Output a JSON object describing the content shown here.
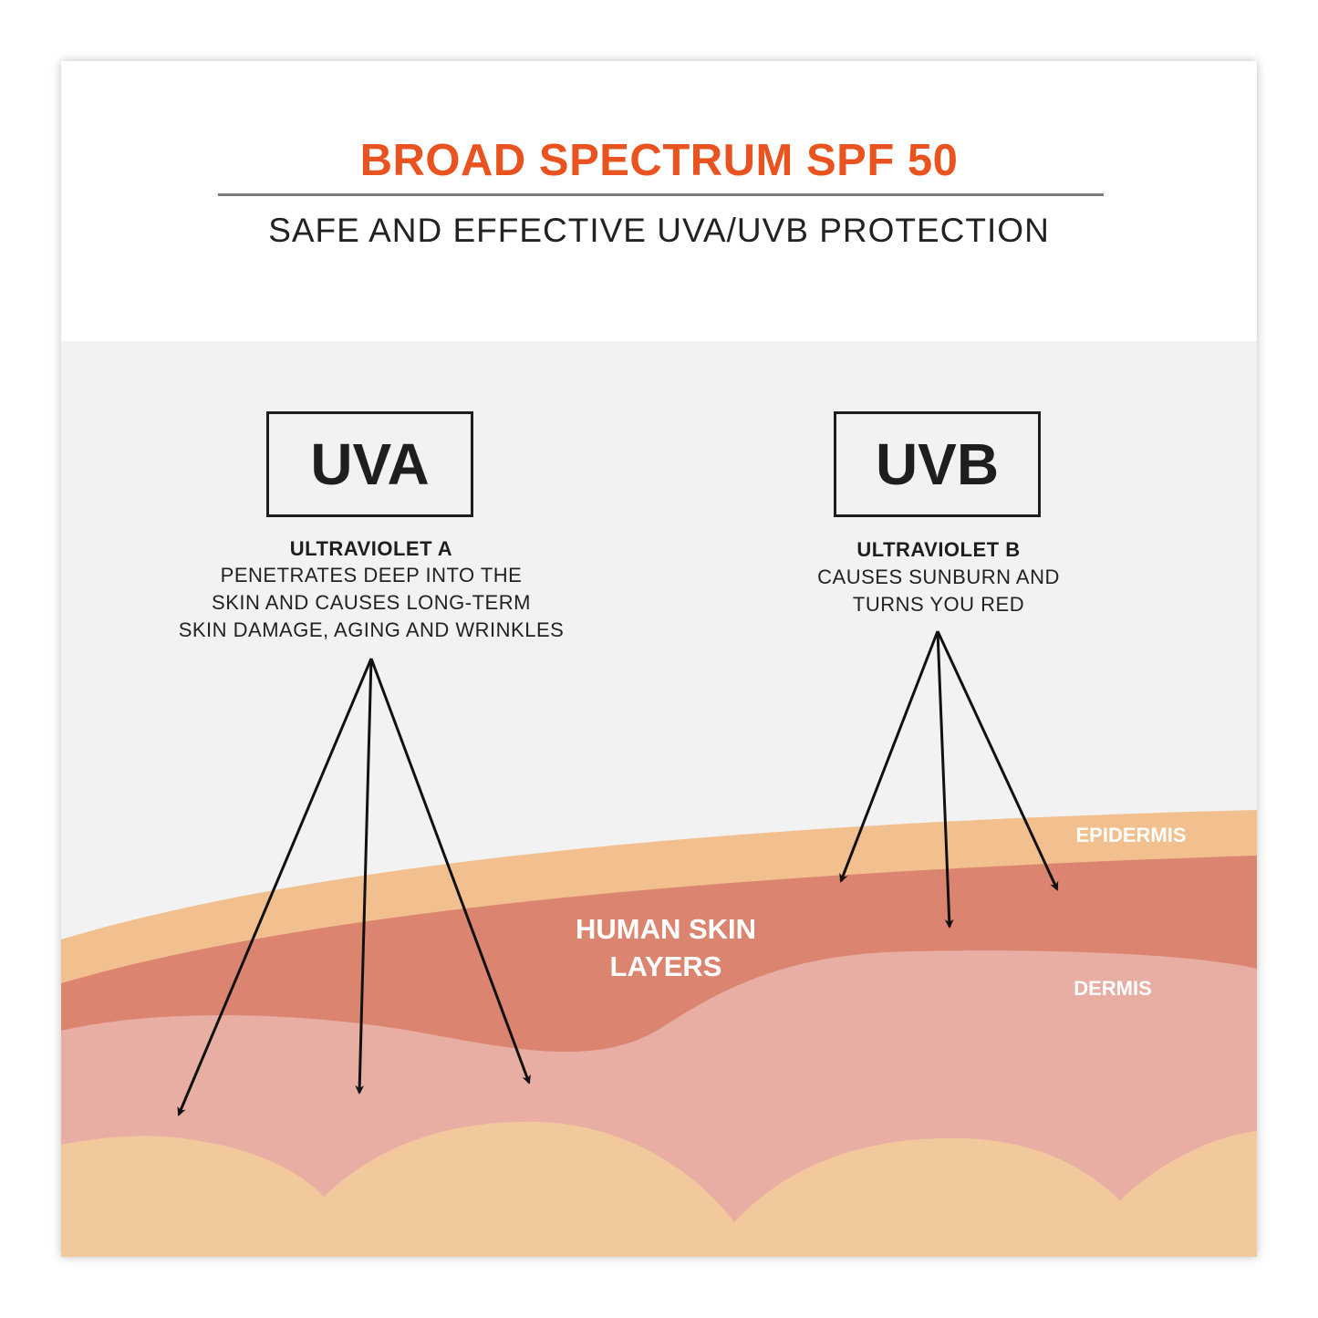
{
  "header": {
    "title": "BROAD SPECTRUM SPF 50",
    "subtitle": "SAFE AND EFFECTIVE UVA/UVB PROTECTION"
  },
  "uva": {
    "label": "UVA",
    "heading": "ULTRAVIOLET A",
    "description": [
      "PENETRATES DEEP INTO THE",
      "SKIN AND CAUSES LONG-TERM",
      "SKIN DAMAGE, AGING AND WRINKLES"
    ],
    "arrow_count": 3
  },
  "uvb": {
    "label": "UVB",
    "heading": "ULTRAVIOLET B",
    "description": [
      "CAUSES SUNBURN AND",
      "TURNS YOU RED"
    ],
    "arrow_count": 3
  },
  "skin": {
    "title": [
      "HUMAN SKIN",
      "LAYERS"
    ],
    "epidermis_label": "EPIDERMIS",
    "dermis_label": "DERMIS"
  },
  "colors": {
    "title": "#e8531f",
    "background_lower": "#f2f2f2",
    "epidermis": "#f2c08f",
    "red_layer": "#db8470",
    "dermis": "#e8aea3",
    "subcutis": "#f2c89d",
    "arrows": "#111111"
  }
}
